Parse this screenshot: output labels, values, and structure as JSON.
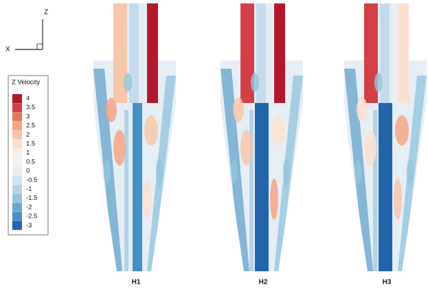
{
  "axes": {
    "z_label": "Z",
    "x_label": "X"
  },
  "legend": {
    "title": "Z Velocity",
    "entries": [
      {
        "label": "4",
        "color": "#b2182b"
      },
      {
        "label": "3.5",
        "color": "#d33f45"
      },
      {
        "label": "3",
        "color": "#e8745c"
      },
      {
        "label": "2.5",
        "color": "#f4a582"
      },
      {
        "label": "2",
        "color": "#f8c6a9"
      },
      {
        "label": "1.5",
        "color": "#fbe0d0"
      },
      {
        "label": "1",
        "color": "#f8efea"
      },
      {
        "label": "0.5",
        "color": "#f3f3f3"
      },
      {
        "label": "0",
        "color": "#e6eef5"
      },
      {
        "label": "-0.5",
        "color": "#d1e5f0"
      },
      {
        "label": "-1",
        "color": "#b3d3e8"
      },
      {
        "label": "-1.5",
        "color": "#92c5de"
      },
      {
        "label": "-2",
        "color": "#6aa7cf"
      },
      {
        "label": "-2.5",
        "color": "#4391c3"
      },
      {
        "label": "-3",
        "color": "#2166ac"
      }
    ]
  },
  "panels": [
    {
      "label": "H1"
    },
    {
      "label": "H2"
    },
    {
      "label": "H3"
    }
  ]
}
